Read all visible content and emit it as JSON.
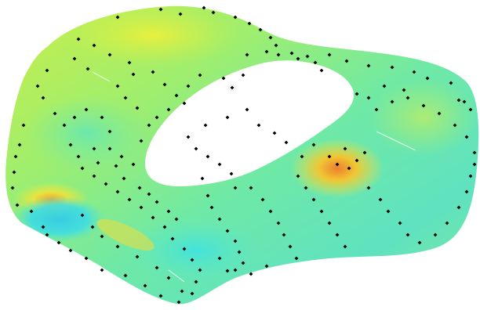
{
  "figure": {
    "type": "3d-surface-with-sample-points",
    "description_visible_text": "",
    "colormap": [
      "#2fd9f0",
      "#3fe6c8",
      "#6ff28a",
      "#b4f25a",
      "#e8ee3a",
      "#f7b02a",
      "#f4782a"
    ],
    "background_color": "#ffffff",
    "marker_color": "#000000",
    "marker_shape": "diamond"
  }
}
